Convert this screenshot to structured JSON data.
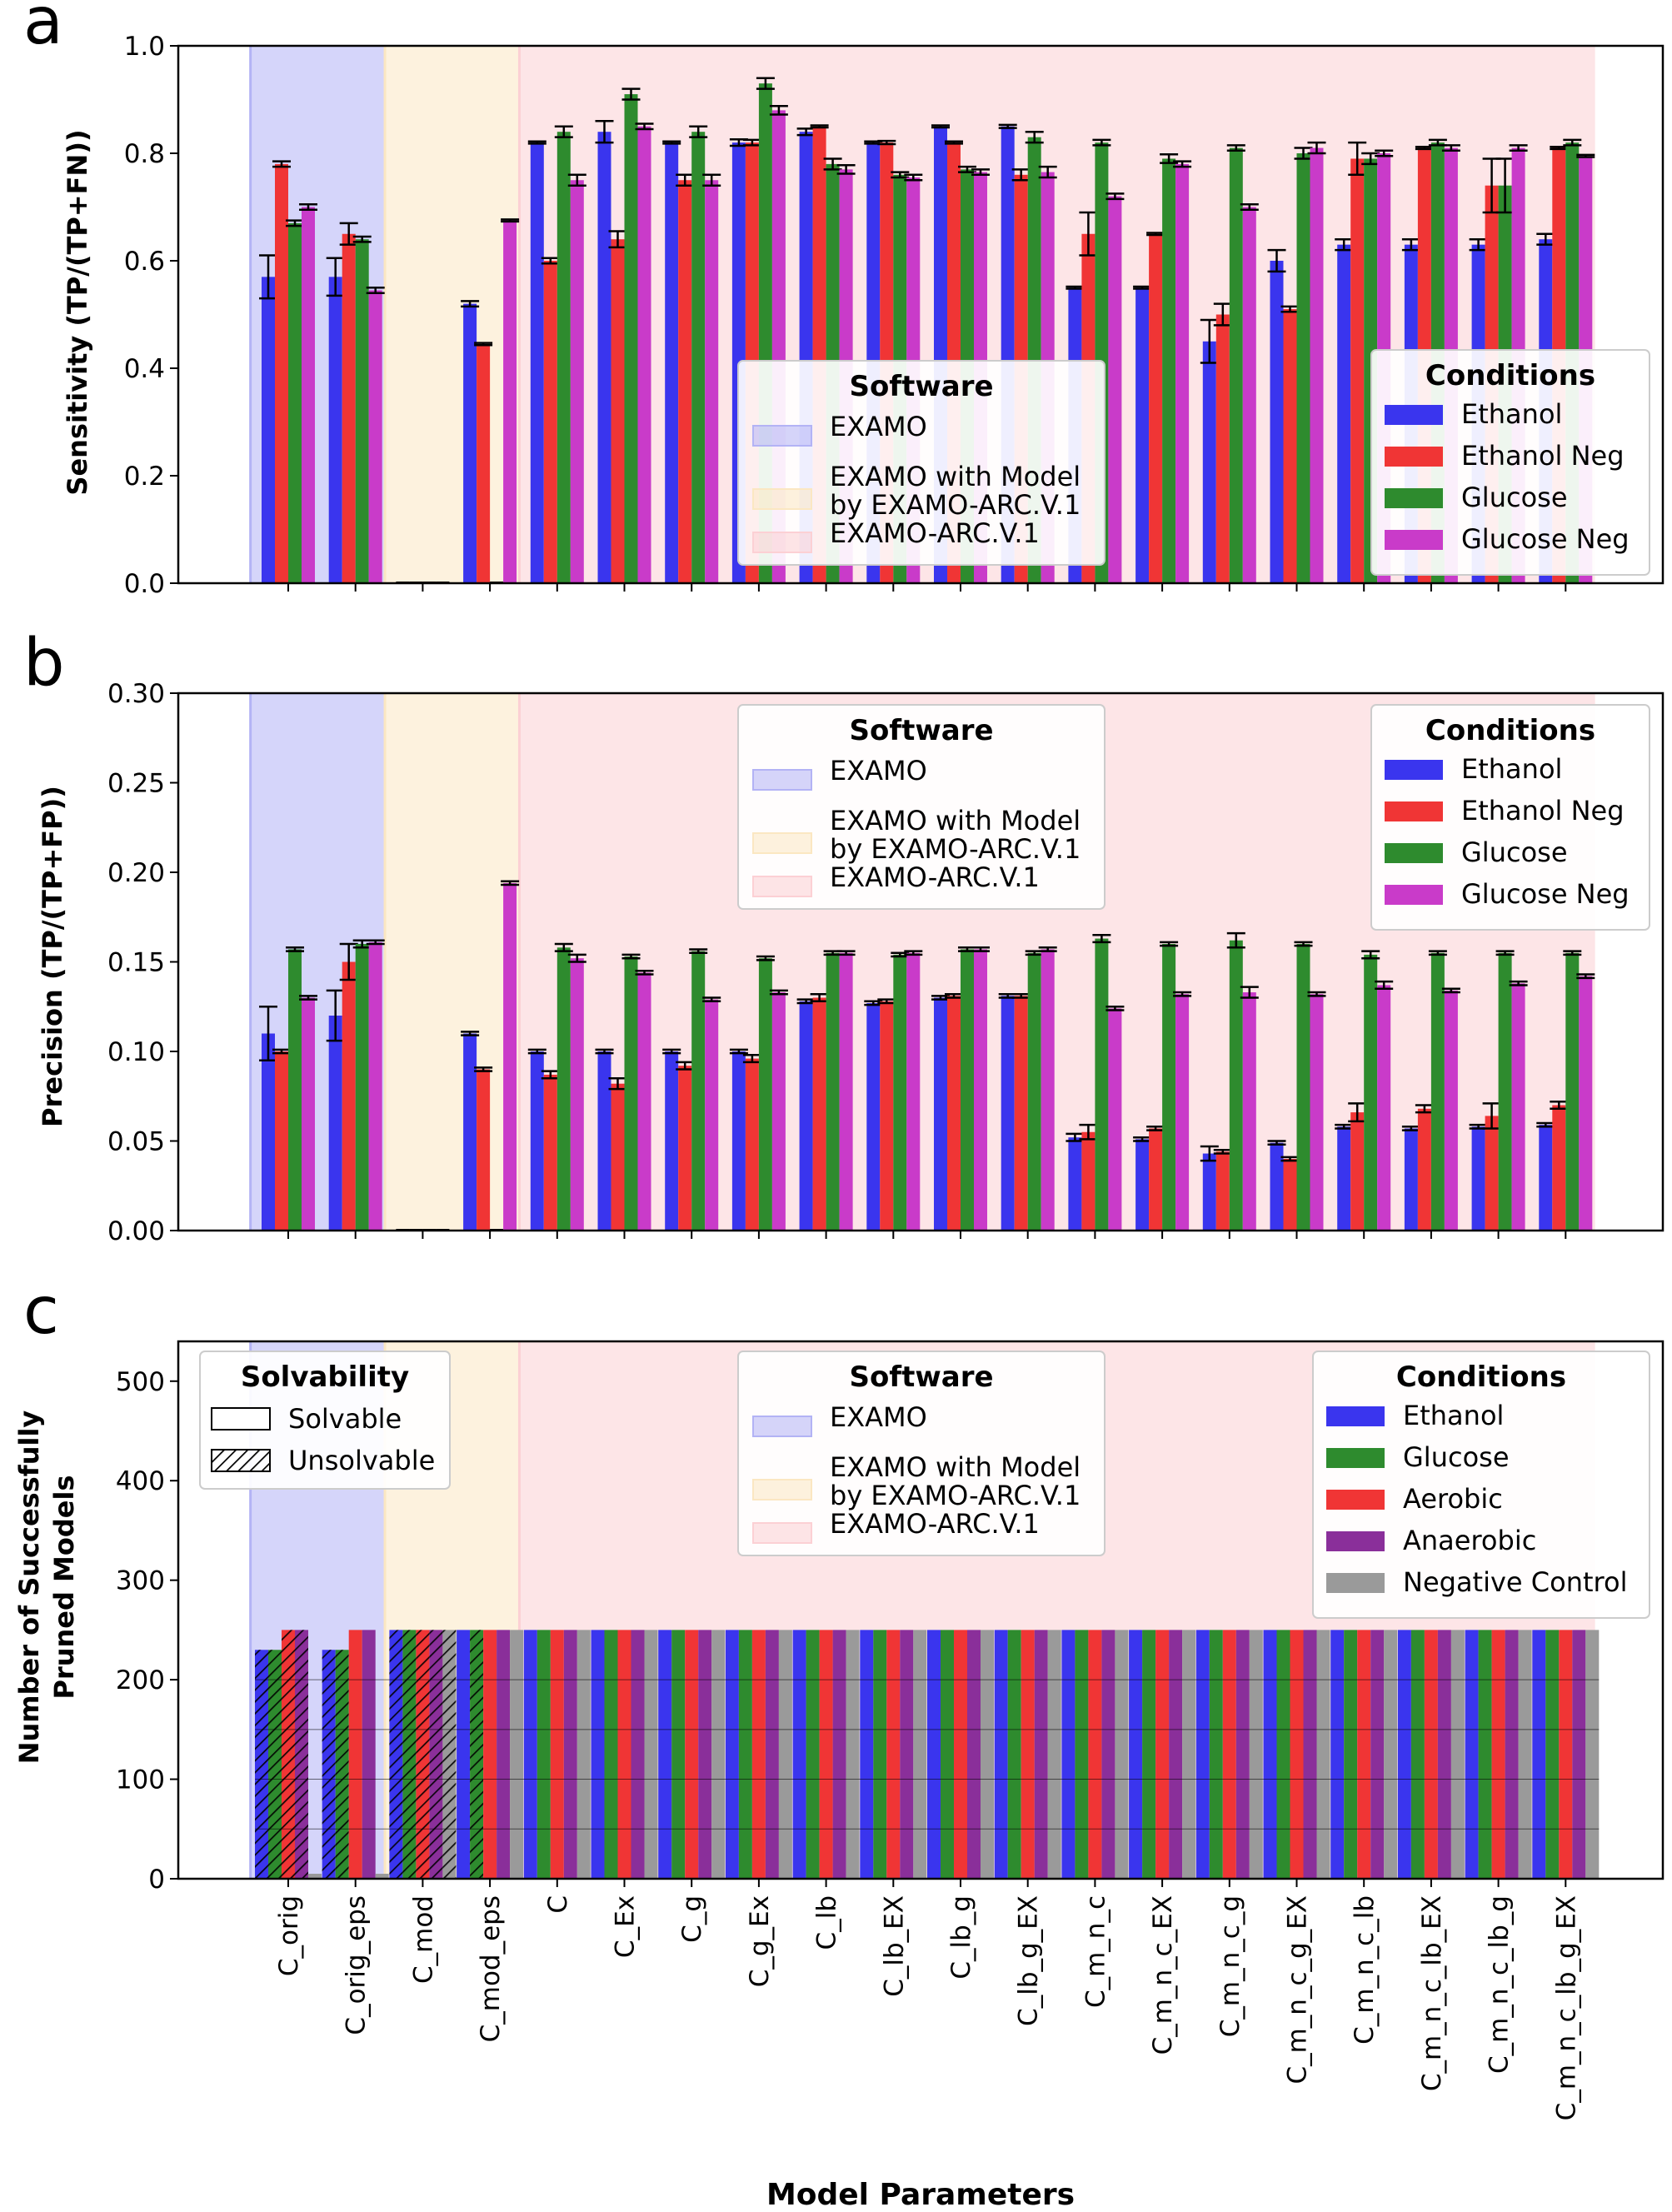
{
  "figure": {
    "xlabel": "Model Parameters",
    "categories": [
      "C_orig",
      "C_orig_eps",
      "C_mod",
      "C_mod_eps",
      "C",
      "C_Ex",
      "C_g",
      "C_g_Ex",
      "C_lb",
      "C_lb_EX",
      "C_lb_g",
      "C_lb_g_EX",
      "C_m_n_c",
      "C_m_n_c_EX",
      "C_m_n_c_g",
      "C_m_n_c_g_EX",
      "C_m_n_c_lb",
      "C_m_n_c_lb_EX",
      "C_m_n_c_lb_g",
      "C_m_n_c_lb_g_EX"
    ],
    "software_groups": [
      {
        "name": "EXAMO",
        "start": 0,
        "end": 1,
        "color": "#b3b3f5"
      },
      {
        "name": "EXAMO with Model\nby EXAMO-ARC.V.1",
        "start": 2,
        "end": 3,
        "color": "#fbe7c2"
      },
      {
        "name": "EXAMO-ARC.V.1",
        "start": 4,
        "end": 19,
        "color": "#fcd0d4"
      }
    ],
    "colors": {
      "ethanol": "#3a35ee",
      "ethanol_neg": "#f03535",
      "glucose": "#2e8b2e",
      "glucose_neg": "#c93bc9",
      "aerobic": "#f03535",
      "anaerobic": "#8a2f9a",
      "negative_control": "#9a9a9a"
    }
  },
  "panels": [
    {
      "letter": "a",
      "ylabel": "Sensitivity (TP/(TP+FN))",
      "yticks": [
        "0.0",
        "0.2",
        "0.4",
        "0.6",
        "0.8",
        "1.0"
      ],
      "software_legend_title": "Software",
      "conditions_legend_title": "Conditions",
      "software_labels": [
        "EXAMO",
        "EXAMO with Model",
        "by EXAMO-ARC.V.1",
        "EXAMO-ARC.V.1"
      ],
      "condition_labels": [
        "Ethanol",
        "Ethanol Neg",
        "Glucose",
        "Glucose Neg"
      ]
    },
    {
      "letter": "b",
      "ylabel": "Precision (TP/(TP+FP))",
      "yticks": [
        "0.00",
        "0.05",
        "0.10",
        "0.15",
        "0.20",
        "0.25",
        "0.30"
      ],
      "software_legend_title": "Software",
      "conditions_legend_title": "Conditions",
      "software_labels": [
        "EXAMO",
        "EXAMO with Model",
        "by EXAMO-ARC.V.1",
        "EXAMO-ARC.V.1"
      ],
      "condition_labels": [
        "Ethanol",
        "Ethanol Neg",
        "Glucose",
        "Glucose Neg"
      ]
    },
    {
      "letter": "c",
      "ylabel_line1": "Number of Successfully",
      "ylabel_line2": "Pruned Models",
      "yticks": [
        "0",
        "100",
        "200",
        "300",
        "400",
        "500"
      ],
      "solvability_title": "Solvability",
      "solvability_labels": [
        "Solvable",
        "Unsolvable"
      ],
      "software_legend_title": "Software",
      "conditions_legend_title": "Conditions",
      "software_labels": [
        "EXAMO",
        "EXAMO with Model",
        "by EXAMO-ARC.V.1",
        "EXAMO-ARC.V.1"
      ],
      "condition_labels": [
        "Ethanol",
        "Glucose",
        "Aerobic",
        "Anaerobic",
        "Negative Control"
      ]
    }
  ],
  "chart_data": [
    {
      "type": "bar",
      "title": "",
      "ylabel": "Sensitivity (TP/(TP+FN))",
      "xlabel": "",
      "ylim": [
        0,
        1.0
      ],
      "grid": false,
      "legend": "center and right",
      "categories": [
        "C_orig",
        "C_orig_eps",
        "C_mod",
        "C_mod_eps",
        "C",
        "C_Ex",
        "C_g",
        "C_g_Ex",
        "C_lb",
        "C_lb_EX",
        "C_lb_g",
        "C_lb_g_EX",
        "C_m_n_c",
        "C_m_n_c_EX",
        "C_m_n_c_g",
        "C_m_n_c_g_EX",
        "C_m_n_c_lb",
        "C_m_n_c_lb_EX",
        "C_m_n_c_lb_g",
        "C_m_n_c_lb_g_EX"
      ],
      "series": [
        {
          "name": "Ethanol",
          "values": [
            0.57,
            0.57,
            0,
            0.52,
            0.82,
            0.84,
            0.82,
            0.82,
            0.84,
            0.82,
            0.85,
            0.85,
            0.55,
            0.55,
            0.45,
            0.6,
            0.63,
            0.63,
            0.63,
            0.64
          ],
          "err": [
            0.04,
            0.035,
            0,
            0.005,
            0.002,
            0.02,
            0.002,
            0.006,
            0.006,
            0.002,
            0.002,
            0.003,
            0.002,
            0.002,
            0.04,
            0.02,
            0.01,
            0.01,
            0.01,
            0.01
          ]
        },
        {
          "name": "Ethanol Neg",
          "values": [
            0.78,
            0.65,
            0,
            0.445,
            0.6,
            0.64,
            0.75,
            0.82,
            0.85,
            0.82,
            0.82,
            0.76,
            0.65,
            0.65,
            0.5,
            0.51,
            0.79,
            0.81,
            0.74,
            0.81
          ],
          "err": [
            0.005,
            0.02,
            0,
            0.002,
            0.005,
            0.015,
            0.01,
            0.005,
            0.002,
            0.003,
            0.002,
            0.01,
            0.04,
            0.002,
            0.02,
            0.005,
            0.03,
            0.002,
            0.05,
            0.002
          ]
        },
        {
          "name": "Glucose",
          "values": [
            0.67,
            0.64,
            0,
            0,
            0.84,
            0.91,
            0.84,
            0.93,
            0.78,
            0.76,
            0.77,
            0.83,
            0.82,
            0.79,
            0.81,
            0.8,
            0.79,
            0.82,
            0.74,
            0.82
          ],
          "err": [
            0.005,
            0.005,
            0,
            0,
            0.01,
            0.01,
            0.01,
            0.01,
            0.01,
            0.005,
            0.005,
            0.01,
            0.005,
            0.008,
            0.005,
            0.01,
            0.01,
            0.005,
            0.05,
            0.005
          ]
        },
        {
          "name": "Glucose Neg",
          "values": [
            0.7,
            0.545,
            0,
            0.675,
            0.75,
            0.85,
            0.75,
            0.88,
            0.77,
            0.755,
            0.765,
            0.765,
            0.72,
            0.78,
            0.7,
            0.81,
            0.8,
            0.81,
            0.81,
            0.795
          ],
          "err": [
            0.005,
            0.005,
            0,
            0.002,
            0.01,
            0.005,
            0.01,
            0.008,
            0.008,
            0.005,
            0.005,
            0.01,
            0.005,
            0.005,
            0.005,
            0.01,
            0.005,
            0.005,
            0.005,
            0.002
          ]
        }
      ]
    },
    {
      "type": "bar",
      "title": "",
      "ylabel": "Precision (TP/(TP+FP))",
      "xlabel": "",
      "ylim": [
        0,
        0.3
      ],
      "grid": false,
      "legend": "top center and top-right",
      "categories": [
        "C_orig",
        "C_orig_eps",
        "C_mod",
        "C_mod_eps",
        "C",
        "C_Ex",
        "C_g",
        "C_g_Ex",
        "C_lb",
        "C_lb_EX",
        "C_lb_g",
        "C_lb_g_EX",
        "C_m_n_c",
        "C_m_n_c_EX",
        "C_m_n_c_g",
        "C_m_n_c_g_EX",
        "C_m_n_c_lb",
        "C_m_n_c_lb_EX",
        "C_m_n_c_lb_g",
        "C_m_n_c_lb_g_EX"
      ],
      "series": [
        {
          "name": "Ethanol",
          "values": [
            0.11,
            0.12,
            0,
            0.11,
            0.1,
            0.1,
            0.1,
            0.1,
            0.128,
            0.127,
            0.13,
            0.131,
            0.052,
            0.051,
            0.043,
            0.049,
            0.058,
            0.057,
            0.058,
            0.059
          ],
          "err": [
            0.015,
            0.014,
            0,
            0.001,
            0.001,
            0.001,
            0.001,
            0.001,
            0.001,
            0.001,
            0.001,
            0.001,
            0.002,
            0.001,
            0.004,
            0.001,
            0.001,
            0.001,
            0.001,
            0.001
          ]
        },
        {
          "name": "Ethanol Neg",
          "values": [
            0.1,
            0.15,
            0,
            0.09,
            0.087,
            0.082,
            0.092,
            0.096,
            0.13,
            0.128,
            0.131,
            0.131,
            0.055,
            0.057,
            0.044,
            0.04,
            0.066,
            0.068,
            0.064,
            0.07
          ],
          "err": [
            0.001,
            0.01,
            0,
            0.001,
            0.002,
            0.003,
            0.002,
            0.002,
            0.002,
            0.001,
            0.001,
            0.001,
            0.004,
            0.001,
            0.001,
            0.001,
            0.005,
            0.002,
            0.007,
            0.002
          ]
        },
        {
          "name": "Glucose",
          "values": [
            0.157,
            0.16,
            0,
            0,
            0.158,
            0.153,
            0.156,
            0.152,
            0.155,
            0.154,
            0.157,
            0.155,
            0.163,
            0.16,
            0.162,
            0.16,
            0.154,
            0.155,
            0.155,
            0.155
          ],
          "err": [
            0.001,
            0.002,
            0,
            0,
            0.002,
            0.001,
            0.001,
            0.001,
            0.001,
            0.001,
            0.001,
            0.001,
            0.002,
            0.001,
            0.004,
            0.001,
            0.002,
            0.001,
            0.001,
            0.001
          ]
        },
        {
          "name": "Glucose Neg",
          "values": [
            0.13,
            0.161,
            0,
            0.194,
            0.152,
            0.144,
            0.129,
            0.133,
            0.155,
            0.155,
            0.157,
            0.157,
            0.124,
            0.132,
            0.133,
            0.132,
            0.137,
            0.134,
            0.138,
            0.142
          ],
          "err": [
            0.001,
            0.001,
            0,
            0.001,
            0.002,
            0.001,
            0.001,
            0.001,
            0.001,
            0.001,
            0.001,
            0.001,
            0.001,
            0.001,
            0.003,
            0.001,
            0.002,
            0.001,
            0.001,
            0.001
          ]
        }
      ]
    },
    {
      "type": "bar",
      "title": "",
      "ylabel": "Number of Successfully Pruned Models",
      "xlabel": "Model Parameters",
      "ylim": [
        0,
        540
      ],
      "grid": false,
      "legend": "top-left, top center and top-right",
      "categories": [
        "C_orig",
        "C_orig_eps",
        "C_mod",
        "C_mod_eps",
        "C",
        "C_Ex",
        "C_g",
        "C_g_Ex",
        "C_lb",
        "C_lb_EX",
        "C_lb_g",
        "C_lb_g_EX",
        "C_m_n_c",
        "C_m_n_c_EX",
        "C_m_n_c_g",
        "C_m_n_c_g_EX",
        "C_m_n_c_lb",
        "C_m_n_c_lb_EX",
        "C_m_n_c_lb_g",
        "C_m_n_c_lb_g_EX"
      ],
      "series": [
        {
          "name": "Ethanol",
          "values": [
            230,
            230,
            250,
            250,
            250,
            250,
            250,
            250,
            250,
            250,
            250,
            250,
            250,
            250,
            250,
            250,
            250,
            250,
            250,
            250
          ],
          "unsolvable": [
            230,
            230,
            250,
            0,
            0,
            0,
            0,
            0,
            0,
            0,
            0,
            0,
            0,
            0,
            0,
            0,
            0,
            0,
            0,
            0
          ]
        },
        {
          "name": "Glucose",
          "values": [
            230,
            230,
            250,
            250,
            250,
            250,
            250,
            250,
            250,
            250,
            250,
            250,
            250,
            250,
            250,
            250,
            250,
            250,
            250,
            250
          ],
          "unsolvable": [
            230,
            230,
            250,
            250,
            0,
            0,
            0,
            0,
            0,
            0,
            0,
            0,
            0,
            0,
            0,
            0,
            0,
            0,
            0,
            0
          ]
        },
        {
          "name": "Aerobic",
          "values": [
            250,
            250,
            250,
            250,
            250,
            250,
            250,
            250,
            250,
            250,
            250,
            250,
            250,
            250,
            250,
            250,
            250,
            250,
            250,
            250
          ],
          "unsolvable": [
            250,
            0,
            250,
            0,
            0,
            0,
            0,
            0,
            0,
            0,
            0,
            0,
            0,
            0,
            0,
            0,
            0,
            0,
            0,
            0
          ]
        },
        {
          "name": "Anaerobic",
          "values": [
            250,
            250,
            250,
            250,
            250,
            250,
            250,
            250,
            250,
            250,
            250,
            250,
            250,
            250,
            250,
            250,
            250,
            250,
            250,
            250
          ],
          "unsolvable": [
            250,
            0,
            250,
            0,
            0,
            0,
            0,
            0,
            0,
            0,
            0,
            0,
            0,
            0,
            0,
            0,
            0,
            0,
            0,
            0
          ]
        },
        {
          "name": "Negative Control",
          "values": [
            5,
            5,
            250,
            250,
            250,
            250,
            250,
            250,
            250,
            250,
            250,
            250,
            250,
            250,
            250,
            250,
            250,
            250,
            250,
            250
          ],
          "unsolvable": [
            0,
            0,
            250,
            0,
            0,
            0,
            0,
            0,
            0,
            0,
            0,
            0,
            0,
            0,
            0,
            0,
            0,
            0,
            0,
            0
          ]
        }
      ]
    }
  ]
}
